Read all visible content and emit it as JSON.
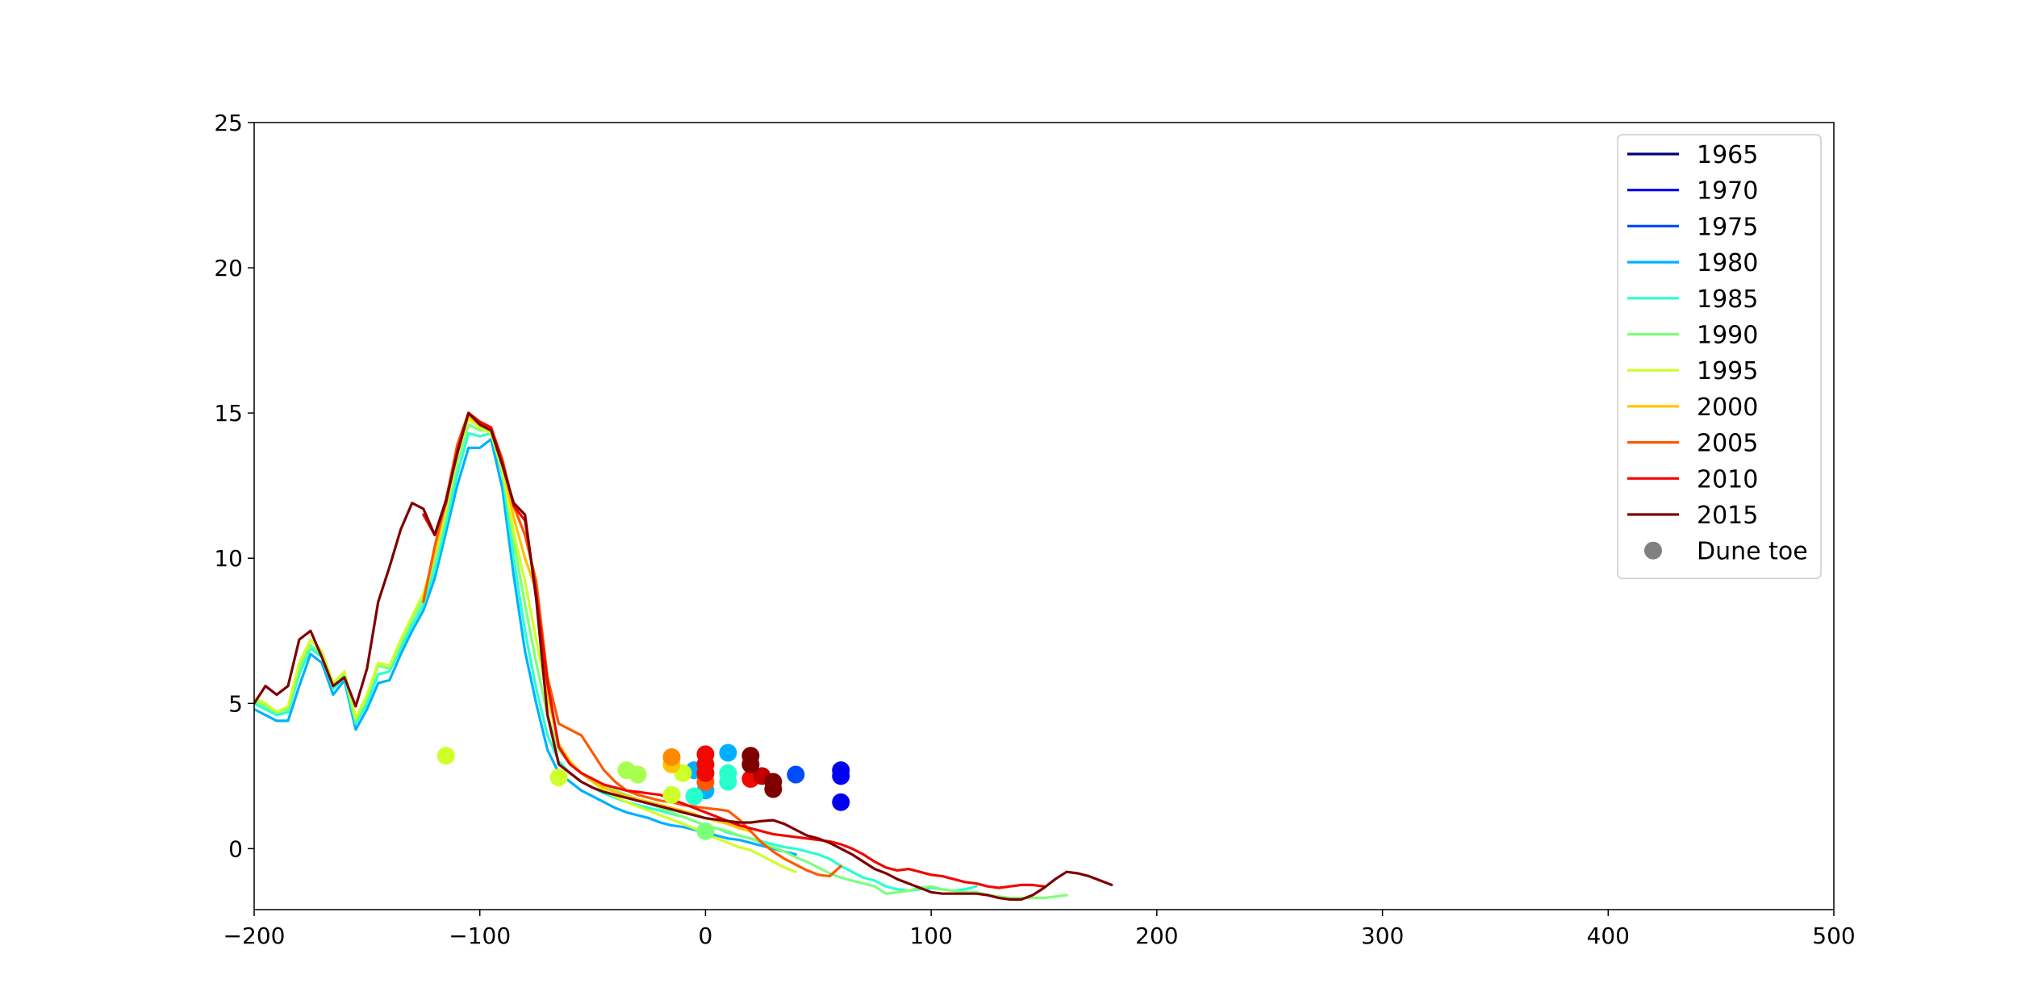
{
  "chart_data": {
    "type": "line",
    "title": "",
    "xlabel": "",
    "ylabel": "",
    "xlim": [
      -200,
      500
    ],
    "ylim": [
      -2.1,
      25
    ],
    "xticks": [
      -200,
      -100,
      0,
      100,
      200,
      300,
      400,
      500
    ],
    "yticks": [
      0,
      5,
      10,
      15,
      20,
      25
    ],
    "grid": false,
    "legend_position": "top-right",
    "series": [
      {
        "name": "1965",
        "color": "#00007f",
        "x": [],
        "y": []
      },
      {
        "name": "1970",
        "color": "#0000f1",
        "x": [],
        "y": []
      },
      {
        "name": "1975",
        "color": "#004cff",
        "x": [],
        "y": []
      },
      {
        "name": "1980",
        "color": "#00b0ff",
        "x": [
          -200,
          -195,
          -190,
          -185,
          -180,
          -175,
          -170,
          -165,
          -160,
          -155,
          -150,
          -145,
          -140,
          -135,
          -130,
          -125,
          -120,
          -115,
          -110,
          -105,
          -100,
          -95,
          -90,
          -85,
          -80,
          -75,
          -70,
          -65,
          -60,
          -55,
          -50,
          -45,
          -40,
          -35,
          -30,
          -25,
          -20,
          -15,
          -10,
          -5,
          0,
          5,
          10,
          15,
          20,
          25,
          30,
          35,
          40
        ],
        "y": [
          4.8,
          4.6,
          4.4,
          4.4,
          5.6,
          6.7,
          6.4,
          5.3,
          5.8,
          4.1,
          4.8,
          5.7,
          5.8,
          6.7,
          7.5,
          8.2,
          9.3,
          10.9,
          12.5,
          13.8,
          13.8,
          14.1,
          12.4,
          9.4,
          6.8,
          5.0,
          3.4,
          2.6,
          2.3,
          2.0,
          1.8,
          1.6,
          1.4,
          1.25,
          1.15,
          1.05,
          0.9,
          0.8,
          0.75,
          0.65,
          0.55,
          0.45,
          0.35,
          0.3,
          0.2,
          0.1,
          0.0,
          -0.1,
          -0.2
        ]
      },
      {
        "name": "1985",
        "color": "#29ffce",
        "x": [
          -200,
          -195,
          -190,
          -185,
          -180,
          -175,
          -170,
          -165,
          -160,
          -155,
          -150,
          -145,
          -140,
          -135,
          -130,
          -125,
          -120,
          -115,
          -110,
          -105,
          -100,
          -95,
          -90,
          -85,
          -80,
          -75,
          -70,
          -65,
          -60,
          -55,
          -50,
          -45,
          -40,
          -35,
          -30,
          -25,
          -20,
          -15,
          -10,
          -5,
          0,
          5,
          10,
          15,
          20,
          25,
          30,
          35,
          40,
          45,
          50,
          55,
          60,
          65,
          70,
          75,
          80,
          85,
          90,
          95,
          100,
          105,
          110,
          115,
          120
        ],
        "y": [
          5.0,
          4.8,
          4.6,
          4.7,
          6.0,
          6.9,
          6.6,
          5.5,
          5.9,
          4.3,
          5.0,
          6.0,
          6.1,
          6.9,
          7.7,
          8.4,
          9.6,
          11.2,
          12.9,
          14.3,
          14.2,
          14.3,
          12.9,
          10.0,
          7.5,
          5.5,
          3.9,
          3.0,
          2.6,
          2.3,
          2.1,
          1.9,
          1.75,
          1.6,
          1.5,
          1.4,
          1.3,
          1.2,
          1.1,
          0.95,
          0.8,
          0.7,
          0.55,
          0.45,
          0.35,
          0.25,
          0.15,
          0.05,
          0.0,
          -0.1,
          -0.2,
          -0.35,
          -0.6,
          -0.8,
          -1.0,
          -1.1,
          -1.3,
          -1.4,
          -1.45,
          -1.4,
          -1.35,
          -1.4,
          -1.45,
          -1.4,
          -1.3
        ]
      },
      {
        "name": "1990",
        "color": "#7dff7a",
        "x": [
          -200,
          -195,
          -190,
          -185,
          -180,
          -175,
          -170,
          -165,
          -160,
          -155,
          -150,
          -145,
          -140,
          -135,
          -130,
          -125,
          -120,
          -115,
          -110,
          -105,
          -100,
          -95,
          -90,
          -85,
          -80,
          -75,
          -70,
          -65,
          -60,
          -55,
          -50,
          -45,
          -40,
          -35,
          -30,
          -25,
          -20,
          -15,
          -10,
          -5,
          0,
          5,
          10,
          15,
          20,
          25,
          30,
          35,
          40,
          45,
          50,
          55,
          60,
          65,
          70,
          75,
          80,
          85,
          90,
          95,
          100,
          105,
          110,
          115,
          120,
          125,
          130,
          135,
          140,
          145,
          150,
          155,
          160
        ],
        "y": [
          5.1,
          4.9,
          4.7,
          4.8,
          6.2,
          7.0,
          6.7,
          5.6,
          6.0,
          4.4,
          5.2,
          6.3,
          6.2,
          7.1,
          7.9,
          8.6,
          9.9,
          11.5,
          13.3,
          14.6,
          14.4,
          14.4,
          13.2,
          10.6,
          8.4,
          6.4,
          4.6,
          3.4,
          2.9,
          2.6,
          2.4,
          2.2,
          2.0,
          1.85,
          1.7,
          1.55,
          1.4,
          1.25,
          1.1,
          0.95,
          0.8,
          0.7,
          0.6,
          0.45,
          0.35,
          0.2,
          0.05,
          -0.1,
          -0.3,
          -0.45,
          -0.65,
          -0.85,
          -1.0,
          -1.1,
          -1.2,
          -1.3,
          -1.55,
          -1.5,
          -1.45,
          -1.35,
          -1.3,
          -1.4,
          -1.45,
          -1.5,
          -1.5,
          -1.6,
          -1.65,
          -1.7,
          -1.7,
          -1.7,
          -1.7,
          -1.65,
          -1.6
        ]
      },
      {
        "name": "1995",
        "color": "#ceff29",
        "x": [
          -200,
          -195,
          -190,
          -185,
          -180,
          -175,
          -170,
          -165,
          -160,
          -155,
          -150,
          -145,
          -140,
          -135,
          -130,
          -125,
          -120,
          -115,
          -110,
          -105,
          -100,
          -95,
          -90,
          -85,
          -80,
          -75,
          -70,
          -65,
          -60,
          -55,
          -50,
          -45,
          -40,
          -35,
          -30,
          -25,
          -20,
          -15,
          -10,
          -5,
          0,
          5,
          10,
          15,
          20,
          25,
          30,
          35,
          40
        ],
        "y": [
          5.2,
          5.0,
          4.7,
          4.9,
          6.4,
          7.2,
          6.8,
          5.7,
          6.1,
          4.5,
          5.3,
          6.4,
          6.3,
          7.2,
          8.0,
          8.8,
          10.1,
          11.7,
          13.5,
          14.8,
          14.5,
          14.3,
          13.0,
          10.9,
          9.2,
          7.2,
          5.2,
          3.6,
          3.0,
          2.6,
          2.3,
          2.0,
          1.8,
          1.6,
          1.45,
          1.3,
          1.15,
          1.0,
          0.85,
          0.7,
          0.5,
          0.35,
          0.2,
          0.05,
          -0.05,
          -0.25,
          -0.45,
          -0.65,
          -0.8
        ]
      },
      {
        "name": "2000",
        "color": "#ffc400",
        "x": [
          -125,
          -120,
          -115,
          -110,
          -105,
          -100,
          -95,
          -90,
          -85,
          -80,
          -75,
          -70,
          -65,
          -60,
          -55,
          -50,
          -45,
          -40,
          -35,
          -30,
          -25,
          -20,
          -15,
          -10,
          -5,
          0,
          5,
          10,
          15,
          20
        ],
        "y": [
          8.6,
          10.2,
          11.9,
          13.8,
          14.9,
          14.6,
          14.5,
          13.3,
          11.4,
          10.0,
          8.9,
          5.4,
          3.6,
          3.0,
          2.6,
          2.3,
          2.1,
          1.95,
          1.8,
          1.7,
          1.6,
          1.5,
          1.4,
          1.3,
          1.2,
          1.05,
          0.95,
          0.85,
          0.7,
          0.6
        ]
      },
      {
        "name": "2005",
        "color": "#ff5900",
        "x": [
          -125,
          -120,
          -115,
          -110,
          -105,
          -100,
          -95,
          -90,
          -85,
          -80,
          -75,
          -70,
          -65,
          -60,
          -55,
          -50,
          -45,
          -40,
          -35,
          -30,
          -25,
          -20,
          -15,
          -10,
          -5,
          0,
          5,
          10,
          15,
          20,
          25,
          30,
          35,
          40,
          45,
          50,
          55,
          60
        ],
        "y": [
          8.5,
          10.4,
          12.0,
          13.9,
          15.0,
          14.7,
          14.5,
          13.4,
          11.8,
          10.8,
          9.2,
          5.9,
          4.3,
          4.1,
          3.9,
          3.3,
          2.7,
          2.3,
          2.0,
          1.85,
          1.75,
          1.65,
          1.6,
          1.5,
          1.45,
          1.4,
          1.35,
          1.3,
          1.0,
          0.6,
          0.2,
          -0.1,
          -0.35,
          -0.55,
          -0.75,
          -0.9,
          -0.95,
          -0.6
        ]
      },
      {
        "name": "2010",
        "color": "#f10800",
        "x": [
          -125,
          -120,
          -115,
          -110,
          -105,
          -100,
          -95,
          -90,
          -85,
          -80,
          -75,
          -70,
          -65,
          -60,
          -55,
          -50,
          -45,
          -40,
          -35,
          -30,
          -25,
          -20,
          -15,
          -10,
          -5,
          0,
          5,
          10,
          15,
          20,
          25,
          30,
          35,
          40,
          45,
          50,
          55,
          60,
          65,
          70,
          75,
          80,
          85,
          90,
          95,
          100,
          105,
          110,
          115,
          120,
          125,
          130,
          135,
          140,
          145,
          150
        ],
        "y": [
          11.5,
          10.8,
          11.9,
          13.7,
          15.0,
          14.7,
          14.5,
          13.3,
          11.8,
          11.3,
          8.8,
          5.7,
          3.5,
          2.9,
          2.6,
          2.4,
          2.2,
          2.1,
          2.0,
          1.95,
          1.9,
          1.85,
          1.7,
          1.55,
          1.4,
          1.25,
          1.1,
          0.95,
          0.8,
          0.7,
          0.6,
          0.5,
          0.45,
          0.4,
          0.35,
          0.3,
          0.25,
          0.15,
          0.0,
          -0.2,
          -0.45,
          -0.65,
          -0.75,
          -0.7,
          -0.8,
          -0.9,
          -0.95,
          -1.05,
          -1.15,
          -1.2,
          -1.3,
          -1.35,
          -1.3,
          -1.25,
          -1.25,
          -1.3
        ]
      },
      {
        "name": "2015",
        "color": "#7f0000",
        "x": [
          -200,
          -195,
          -190,
          -185,
          -180,
          -175,
          -170,
          -165,
          -160,
          -155,
          -150,
          -145,
          -140,
          -135,
          -130,
          -125,
          -120,
          -115,
          -110,
          -105,
          -100,
          -95,
          -90,
          -85,
          -80,
          -75,
          -70,
          -65,
          -60,
          -55,
          -50,
          -45,
          -40,
          -35,
          -30,
          -25,
          -20,
          -15,
          -10,
          -5,
          0,
          5,
          10,
          15,
          20,
          25,
          30,
          35,
          40,
          45,
          50,
          55,
          60,
          65,
          70,
          75,
          80,
          85,
          90,
          95,
          100,
          105,
          110,
          115,
          120,
          125,
          130,
          135,
          140,
          145,
          150,
          155,
          160,
          165,
          170,
          175,
          180
        ],
        "y": [
          5.0,
          5.6,
          5.3,
          5.6,
          7.2,
          7.5,
          6.6,
          5.6,
          5.9,
          4.9,
          6.2,
          8.5,
          9.7,
          11.0,
          11.9,
          11.7,
          10.8,
          12.0,
          13.6,
          15.0,
          14.6,
          14.4,
          13.2,
          11.9,
          11.5,
          8.6,
          4.6,
          2.9,
          2.6,
          2.3,
          2.1,
          1.95,
          1.85,
          1.75,
          1.65,
          1.55,
          1.45,
          1.35,
          1.25,
          1.15,
          1.05,
          1.0,
          0.95,
          0.9,
          0.9,
          0.95,
          0.98,
          0.85,
          0.65,
          0.45,
          0.35,
          0.2,
          0.0,
          -0.2,
          -0.45,
          -0.7,
          -0.85,
          -1.05,
          -1.2,
          -1.35,
          -1.5,
          -1.55,
          -1.55,
          -1.55,
          -1.55,
          -1.6,
          -1.7,
          -1.75,
          -1.75,
          -1.6,
          -1.35,
          -1.05,
          -0.8,
          -0.85,
          -0.95,
          -1.1,
          -1.25
        ]
      }
    ],
    "scatter": {
      "name": "Dune toe",
      "legend_color": "#808080",
      "points": [
        {
          "x": 60,
          "y": 2.7,
          "color": "#0000f1"
        },
        {
          "x": 60,
          "y": 2.5,
          "color": "#0000f1"
        },
        {
          "x": 60,
          "y": 1.6,
          "color": "#0000f1"
        },
        {
          "x": 40,
          "y": 2.55,
          "color": "#004cff"
        },
        {
          "x": 10,
          "y": 3.3,
          "color": "#00b0ff"
        },
        {
          "x": -5,
          "y": 2.7,
          "color": "#00b0ff"
        },
        {
          "x": 0,
          "y": 2.0,
          "color": "#00b0ff"
        },
        {
          "x": 10,
          "y": 2.6,
          "color": "#29ffce"
        },
        {
          "x": 10,
          "y": 2.3,
          "color": "#29ffce"
        },
        {
          "x": -5,
          "y": 1.8,
          "color": "#29ffce"
        },
        {
          "x": 0,
          "y": 0.6,
          "color": "#7dff7a"
        },
        {
          "x": -115,
          "y": 3.2,
          "color": "#ceff29"
        },
        {
          "x": -65,
          "y": 2.45,
          "color": "#ceff29"
        },
        {
          "x": -35,
          "y": 2.7,
          "color": "#a8ff4f"
        },
        {
          "x": -30,
          "y": 2.55,
          "color": "#a8ff4f"
        },
        {
          "x": -15,
          "y": 1.85,
          "color": "#ceff29"
        },
        {
          "x": -10,
          "y": 2.6,
          "color": "#ceff29"
        },
        {
          "x": -15,
          "y": 2.9,
          "color": "#ffc400"
        },
        {
          "x": -15,
          "y": 3.15,
          "color": "#ff8a00"
        },
        {
          "x": 0,
          "y": 2.3,
          "color": "#ff5900"
        },
        {
          "x": 0,
          "y": 3.25,
          "color": "#f10800"
        },
        {
          "x": 0,
          "y": 2.9,
          "color": "#f10800"
        },
        {
          "x": 0,
          "y": 2.6,
          "color": "#f10800"
        },
        {
          "x": 20,
          "y": 2.4,
          "color": "#f10800"
        },
        {
          "x": 25,
          "y": 2.5,
          "color": "#c00000"
        },
        {
          "x": 20,
          "y": 3.2,
          "color": "#7f0000"
        },
        {
          "x": 20,
          "y": 2.9,
          "color": "#7f0000"
        },
        {
          "x": 30,
          "y": 2.3,
          "color": "#7f0000"
        },
        {
          "x": 30,
          "y": 2.05,
          "color": "#7f0000"
        }
      ]
    }
  }
}
